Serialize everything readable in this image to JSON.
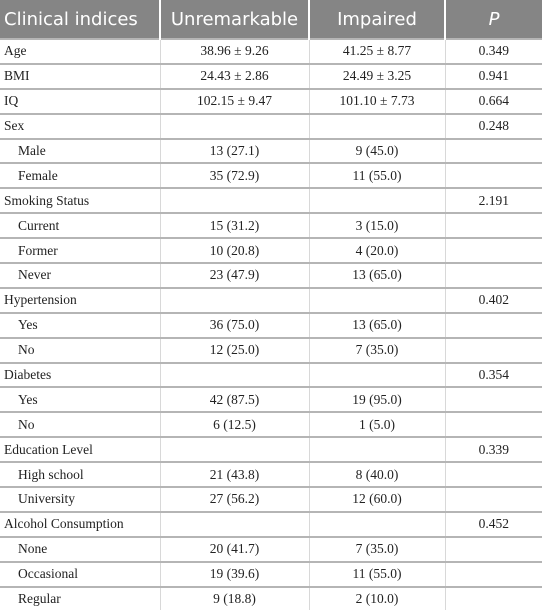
{
  "table": {
    "header": [
      "Clinical indices",
      "Unremarkable",
      "Impaired",
      "P"
    ],
    "rows": [
      {
        "label": "Age",
        "unremarkable": "38.96 ± 9.26",
        "impaired": "41.25 ± 8.77",
        "p": "0.349"
      },
      {
        "label": "BMI",
        "unremarkable": "24.43 ± 2.86",
        "impaired": "24.49 ± 3.25",
        "p": "0.941"
      },
      {
        "label": "IQ",
        "unremarkable": "102.15 ± 9.47",
        "impaired": "101.10 ± 7.73",
        "p": "0.664"
      },
      {
        "label": "Sex",
        "p": "0.248",
        "levels": [
          {
            "label": "Male",
            "unremarkable": "13 (27.1)",
            "impaired": "9 (45.0)"
          },
          {
            "label": "Female",
            "unremarkable": "35 (72.9)",
            "impaired": "11 (55.0)"
          }
        ]
      },
      {
        "label": "Smoking Status",
        "p": "2.191",
        "levels": [
          {
            "label": "Current",
            "unremarkable": "15 (31.2)",
            "impaired": "3 (15.0)"
          },
          {
            "label": "Former",
            "unremarkable": "10 (20.8)",
            "impaired": "4 (20.0)"
          },
          {
            "label": "Never",
            "unremarkable": "23 (47.9)",
            "impaired": "13 (65.0)"
          }
        ]
      },
      {
        "label": "Hypertension",
        "p": "0.402",
        "levels": [
          {
            "label": "Yes",
            "unremarkable": "36 (75.0)",
            "impaired": "13 (65.0)"
          },
          {
            "label": "No",
            "unremarkable": "12 (25.0)",
            "impaired": "7 (35.0)"
          }
        ]
      },
      {
        "label": "Diabetes",
        "p": "0.354",
        "levels": [
          {
            "label": "Yes",
            "unremarkable": "42 (87.5)",
            "impaired": "19 (95.0)"
          },
          {
            "label": "No",
            "unremarkable": "6 (12.5)",
            "impaired": "1 (5.0)"
          }
        ]
      },
      {
        "label": "Education Level",
        "p": "0.339",
        "levels": [
          {
            "label": "High school",
            "unremarkable": "21 (43.8)",
            "impaired": "8 (40.0)"
          },
          {
            "label": "University",
            "unremarkable": "27 (56.2)",
            "impaired": "12 (60.0)"
          }
        ]
      },
      {
        "label": "Alcohol Consumption",
        "p": "0.452",
        "levels": [
          {
            "label": "None",
            "unremarkable": "20 (41.7)",
            "impaired": "7 (35.0)"
          },
          {
            "label": "Occasional",
            "unremarkable": "19 (39.6)",
            "impaired": "11 (55.0)"
          },
          {
            "label": "Regular",
            "unremarkable": "9 (18.8)",
            "impaired": "2 (10.0)"
          }
        ]
      }
    ]
  }
}
